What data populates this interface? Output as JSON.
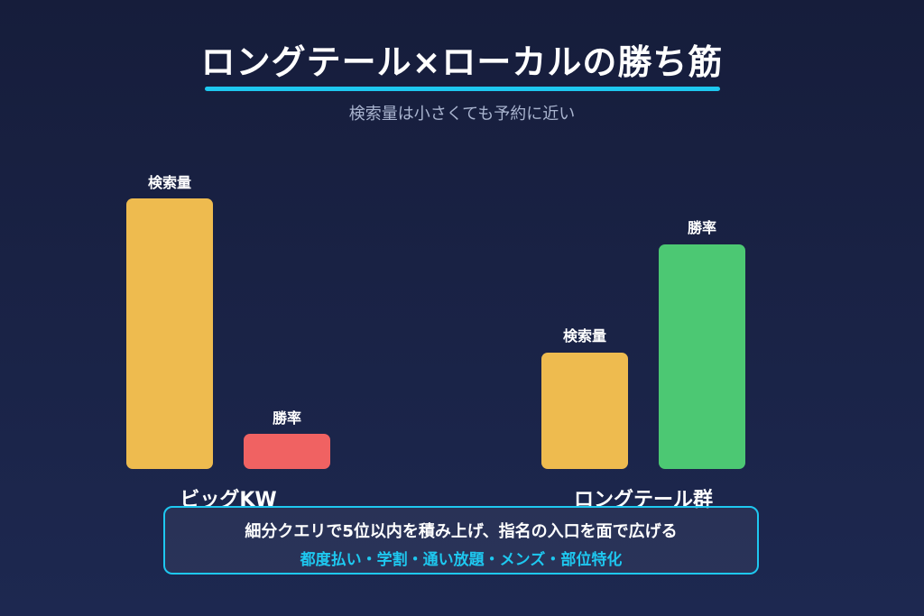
{
  "header": {
    "title": "ロングテール×ローカルの勝ち筋",
    "subtitle": "検索量は小さくても予約に近い"
  },
  "colors": {
    "search_volume": "#eebb4f",
    "win_rate_big": "#f06262",
    "win_rate_longtail": "#4cc873",
    "accent": "#1ec8f0"
  },
  "chart_data": {
    "type": "bar",
    "groups": [
      {
        "name": "ビッグKW",
        "bars": [
          {
            "label": "検索量",
            "relative_value": 1.0
          },
          {
            "label": "勝率",
            "relative_value": 0.13
          }
        ]
      },
      {
        "name": "ロングテール群",
        "bars": [
          {
            "label": "検索量",
            "relative_value": 0.43
          },
          {
            "label": "勝率",
            "relative_value": 0.83
          }
        ]
      }
    ]
  },
  "callout": {
    "main": "細分クエリで5位以内を積み上げ、指名の入口を面で広げる",
    "sub": "都度払い・学割・通い放題・メンズ・部位特化"
  }
}
